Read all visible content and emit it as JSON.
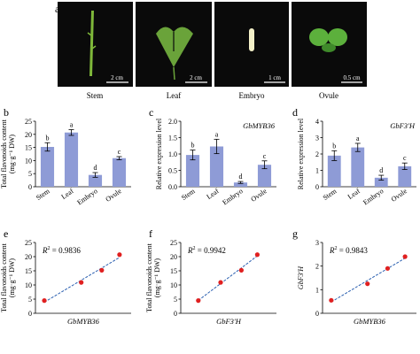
{
  "panel_labels": [
    "a",
    "b",
    "c",
    "d",
    "e",
    "f",
    "g"
  ],
  "photos": [
    {
      "label": "Stem",
      "scale_bar": "2 cm",
      "background": "#0a0a0a",
      "subject_color": "#7fb83a"
    },
    {
      "label": "Leaf",
      "scale_bar": "2 cm",
      "background": "#0a0a0a",
      "subject_color": "#6aa33a"
    },
    {
      "label": "Embryo",
      "scale_bar": "1 cm",
      "background": "#0a0a0a",
      "subject_color": "#f3f0c8"
    },
    {
      "label": "Ovule",
      "scale_bar": "0.5 cm",
      "background": "#0a0a0a",
      "subject_color": "#5cb03c"
    }
  ],
  "chart_data": [
    {
      "panel": "b",
      "type": "bar",
      "title": "",
      "categories": [
        "Stem",
        "Leaf",
        "Embryo",
        "Ovule"
      ],
      "values": [
        15.2,
        20.7,
        4.5,
        10.9
      ],
      "errors": [
        1.6,
        1.1,
        0.9,
        0.6
      ],
      "significance": [
        "b",
        "a",
        "d",
        "c"
      ],
      "ylabel_line1": "Total flavonoids content",
      "ylabel_line2": "(mg·g⁻¹ DW)",
      "ylim": [
        0,
        25
      ],
      "yticks": [
        0,
        5,
        10,
        15,
        20,
        25
      ],
      "bar_color": "#8e9bd6"
    },
    {
      "panel": "c",
      "type": "bar",
      "title": "GbMYB36",
      "categories": [
        "Stem",
        "Leaf",
        "Embryo",
        "Ovule"
      ],
      "values": [
        0.97,
        1.23,
        0.13,
        0.67
      ],
      "errors": [
        0.15,
        0.22,
        0.03,
        0.12
      ],
      "significance": [
        "b",
        "a",
        "d",
        "c"
      ],
      "ylabel_line1": "Relative expression level",
      "ylim": [
        0,
        2.0
      ],
      "yticks": [
        0,
        0.5,
        1.0,
        1.5,
        2.0
      ],
      "ytick_labels": [
        "0.0",
        "0.5",
        "1.0",
        "1.5",
        "2.0"
      ],
      "bar_color": "#8e9bd6"
    },
    {
      "panel": "d",
      "type": "bar",
      "title": "GbF3'H",
      "categories": [
        "Stem",
        "Leaf",
        "Embryo",
        "Ovule"
      ],
      "values": [
        1.9,
        2.4,
        0.55,
        1.25
      ],
      "errors": [
        0.3,
        0.25,
        0.15,
        0.2
      ],
      "significance": [
        "b",
        "a",
        "d",
        "c"
      ],
      "ylabel_line1": "Relative expression level",
      "ylim": [
        0,
        4
      ],
      "yticks": [
        0,
        1,
        2,
        3,
        4
      ],
      "bar_color": "#8e9bd6"
    },
    {
      "panel": "e",
      "type": "scatter",
      "annotation": "= 0.9836",
      "x": [
        0.13,
        0.67,
        0.97,
        1.23
      ],
      "y": [
        4.5,
        10.9,
        15.2,
        20.7
      ],
      "xlabel": "GbMYB36",
      "ylabel_line1": "Total flavonoids content",
      "ylabel_line2": "(mg·g⁻¹ DW)",
      "xlim": [
        0,
        1.4
      ],
      "ylim": [
        0,
        25
      ],
      "yticks": [
        0,
        5,
        10,
        15,
        20,
        25
      ],
      "point_color": "#e02020",
      "line_color": "#2a5fb0"
    },
    {
      "panel": "f",
      "type": "scatter",
      "annotation": "= 0.9942",
      "x": [
        0.55,
        1.25,
        1.9,
        2.4
      ],
      "y": [
        4.5,
        10.9,
        15.2,
        20.7
      ],
      "xlabel": "GbF3'H",
      "ylabel_line1": "Total flavonoids content",
      "ylabel_line2": "(mg·g⁻¹ DW)",
      "xlim": [
        0,
        3
      ],
      "ylim": [
        0,
        25
      ],
      "yticks": [
        0,
        5,
        10,
        15,
        20,
        25
      ],
      "point_color": "#e02020",
      "line_color": "#2a5fb0"
    },
    {
      "panel": "g",
      "type": "scatter",
      "annotation": "= 0.9843",
      "x": [
        0.13,
        0.67,
        0.97,
        1.23
      ],
      "y": [
        0.55,
        1.25,
        1.9,
        2.4
      ],
      "xlabel": "GbMYB36",
      "ylabel_line1": "GbF3'H",
      "xlim": [
        0,
        1.4
      ],
      "ylim": [
        0,
        3
      ],
      "yticks": [
        0,
        1,
        2,
        3
      ],
      "point_color": "#e02020",
      "line_color": "#2a5fb0"
    }
  ]
}
